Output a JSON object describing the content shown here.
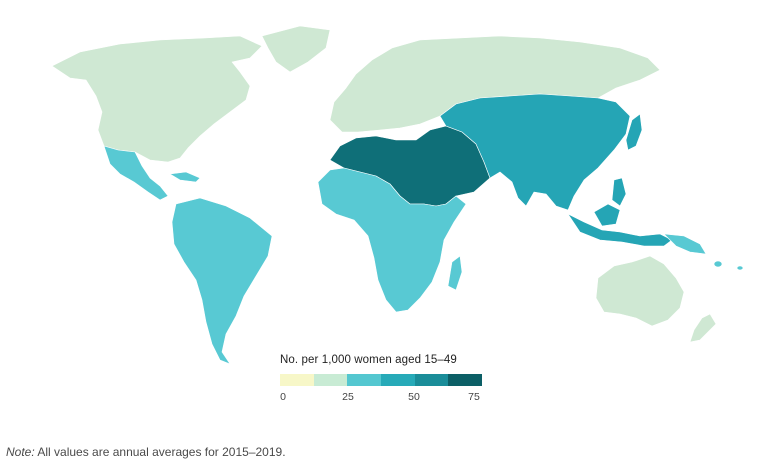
{
  "legend": {
    "title": "No. per 1,000 women aged 15–49",
    "ticks": [
      "0",
      "25",
      "50",
      "75"
    ],
    "scale_colors": [
      "#f7f7c8",
      "#c8ebd4",
      "#54c7d0",
      "#27aab8",
      "#1a8d99",
      "#0c5f66"
    ]
  },
  "note": {
    "label": "Note:",
    "text": " All values are annual averages for 2015–2019."
  },
  "region_values": {
    "north_america": "low",
    "europe_russia": "low",
    "australia": "low",
    "latin_america": "moderate",
    "sub_saharan_africa": "moderate",
    "north_africa_middle_east": "very high",
    "central_south_east_asia": "high"
  },
  "colors": {
    "low": "#cfe8d3",
    "moderate": "#58c9d3",
    "high": "#25a5b5",
    "very_high": "#0f6f78",
    "background": "#ffffff"
  }
}
